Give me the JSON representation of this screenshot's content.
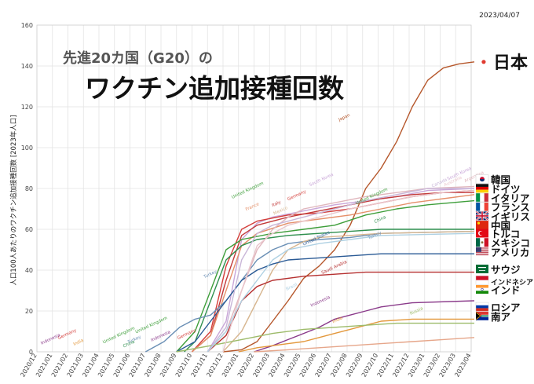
{
  "date_stamp": "2023/04/07",
  "subtitle": "先進20カ国（G20）の",
  "title": "ワクチン追加接種回数",
  "chart_data": {
    "type": "line",
    "ylabel": "人口100人あたりのワクチン追加接種回数 [2023年人口]",
    "ylim": [
      0,
      160
    ],
    "yticks": [
      0,
      20,
      40,
      60,
      80,
      100,
      120,
      140,
      160
    ],
    "x_start": "2020-12",
    "x_end": "2023-04",
    "xticks": [
      "2020/12",
      "2021/01",
      "2021/02",
      "2021/03",
      "2021/04",
      "2021/05",
      "2021/06",
      "2021/07",
      "2021/08",
      "2021/09",
      "2021/10",
      "2021/11",
      "2021/12",
      "2022/01",
      "2022/02",
      "2022/03",
      "2022/04",
      "2022/05",
      "2022/06",
      "2022/07",
      "2022/08",
      "2022/09",
      "2022/10",
      "2022/11",
      "2022/12",
      "2023/01",
      "2023/02",
      "2023/03",
      "2023/04"
    ],
    "grid": true,
    "series": [
      {
        "name": "Japan",
        "color": "#b5562a",
        "points": [
          [
            12,
            0
          ],
          [
            13.2,
            1
          ],
          [
            14.2,
            5
          ],
          [
            15.2,
            15
          ],
          [
            16.2,
            25
          ],
          [
            17.2,
            36
          ],
          [
            18.2,
            42
          ],
          [
            19.2,
            50
          ],
          [
            20.2,
            62
          ],
          [
            21.2,
            80
          ],
          [
            22.2,
            90
          ],
          [
            23.2,
            103
          ],
          [
            24.2,
            120
          ],
          [
            25.2,
            133
          ],
          [
            26.2,
            139
          ],
          [
            27.2,
            141
          ],
          [
            28.2,
            142
          ]
        ]
      },
      {
        "name": "South Korea",
        "color": "#c9a6d8",
        "points": [
          [
            11,
            0
          ],
          [
            12.2,
            15
          ],
          [
            13.2,
            55
          ],
          [
            14.2,
            63
          ],
          [
            15.2,
            66
          ],
          [
            17.2,
            69
          ],
          [
            19.2,
            72
          ],
          [
            21.2,
            74
          ],
          [
            23.2,
            76
          ],
          [
            25.2,
            79
          ],
          [
            28.2,
            80
          ]
        ]
      },
      {
        "name": "Germany",
        "color": "#d43e3a",
        "points": [
          [
            10,
            0
          ],
          [
            11.2,
            10
          ],
          [
            12.2,
            42
          ],
          [
            13.2,
            60
          ],
          [
            14.2,
            64
          ],
          [
            16.2,
            67
          ],
          [
            18.2,
            68
          ],
          [
            20.2,
            70
          ],
          [
            22.2,
            73
          ],
          [
            24.2,
            76
          ],
          [
            26.2,
            78
          ],
          [
            28.2,
            79
          ]
        ]
      },
      {
        "name": "Italy",
        "color": "#c23a3a",
        "points": [
          [
            10,
            0
          ],
          [
            11.2,
            8
          ],
          [
            12.2,
            35
          ],
          [
            13.2,
            57
          ],
          [
            14.2,
            62
          ],
          [
            16.2,
            66
          ],
          [
            18.2,
            69
          ],
          [
            20.2,
            72
          ],
          [
            22.2,
            75
          ],
          [
            24.2,
            77
          ],
          [
            26.2,
            78
          ],
          [
            28.2,
            78
          ]
        ]
      },
      {
        "name": "France",
        "color": "#e5906a",
        "points": [
          [
            10,
            0
          ],
          [
            11.2,
            8
          ],
          [
            12.2,
            30
          ],
          [
            13.2,
            52
          ],
          [
            14.2,
            58
          ],
          [
            16.2,
            63
          ],
          [
            18.2,
            65
          ],
          [
            20.2,
            67
          ],
          [
            22.2,
            70
          ],
          [
            24.2,
            73
          ],
          [
            26.2,
            75
          ],
          [
            28.2,
            77
          ]
        ]
      },
      {
        "name": "United Kingdom",
        "color": "#3e9e3a",
        "points": [
          [
            9,
            0
          ],
          [
            10.2,
            10
          ],
          [
            11.2,
            30
          ],
          [
            12.2,
            50
          ],
          [
            13.2,
            55
          ],
          [
            15.2,
            58
          ],
          [
            17.2,
            60
          ],
          [
            19.2,
            62
          ],
          [
            21.2,
            67
          ],
          [
            23.2,
            70
          ],
          [
            25.2,
            72
          ],
          [
            28.2,
            74
          ]
        ]
      },
      {
        "name": "China",
        "color": "#2f8f4e",
        "points": [
          [
            9.5,
            0
          ],
          [
            10.2,
            5
          ],
          [
            11.2,
            25
          ],
          [
            12.2,
            45
          ],
          [
            13.2,
            52
          ],
          [
            14.2,
            55
          ],
          [
            16.2,
            57
          ],
          [
            18.2,
            58
          ],
          [
            20.2,
            59
          ],
          [
            22.2,
            60
          ],
          [
            28.2,
            60
          ]
        ]
      },
      {
        "name": "Turkey",
        "color": "#6a8fb5",
        "points": [
          [
            7,
            0
          ],
          [
            8.2,
            5
          ],
          [
            9.2,
            12
          ],
          [
            10.2,
            16
          ],
          [
            11.2,
            18
          ],
          [
            12.2,
            25
          ],
          [
            13.2,
            35
          ],
          [
            14.2,
            45
          ],
          [
            15.2,
            50
          ],
          [
            16.2,
            53
          ],
          [
            18.2,
            55
          ],
          [
            20.2,
            56
          ],
          [
            22.2,
            58
          ],
          [
            28.2,
            59
          ]
        ]
      },
      {
        "name": "Mexico",
        "color": "#d7b68f",
        "points": [
          [
            12,
            0
          ],
          [
            13.2,
            10
          ],
          [
            14.2,
            25
          ],
          [
            15.2,
            40
          ],
          [
            16.2,
            50
          ],
          [
            17.2,
            54
          ],
          [
            18.2,
            56
          ],
          [
            20.2,
            57
          ],
          [
            22.2,
            58
          ],
          [
            28.2,
            59
          ]
        ]
      },
      {
        "name": "United States",
        "color": "#2a5a95",
        "points": [
          [
            9,
            0
          ],
          [
            10.2,
            5
          ],
          [
            11.2,
            15
          ],
          [
            12.2,
            25
          ],
          [
            13.2,
            35
          ],
          [
            14.2,
            40
          ],
          [
            15.2,
            43
          ],
          [
            16.2,
            45
          ],
          [
            18.2,
            46
          ],
          [
            20.2,
            47
          ],
          [
            22.2,
            48
          ],
          [
            28.2,
            48
          ]
        ]
      },
      {
        "name": "Saudi Arabia",
        "color": "#b52f2f",
        "points": [
          [
            11,
            0
          ],
          [
            12.2,
            8
          ],
          [
            13.2,
            25
          ],
          [
            14.2,
            32
          ],
          [
            15.2,
            35
          ],
          [
            17.2,
            37
          ],
          [
            19.2,
            38
          ],
          [
            21.2,
            39
          ],
          [
            28.2,
            39
          ]
        ]
      },
      {
        "name": "Indonesia",
        "color": "#8a3a8a",
        "points": [
          [
            14,
            0
          ],
          [
            15.2,
            3
          ],
          [
            16.2,
            6
          ],
          [
            17.2,
            9
          ],
          [
            18.2,
            12
          ],
          [
            19.2,
            16
          ],
          [
            20.2,
            18
          ],
          [
            21.2,
            20
          ],
          [
            22.2,
            22
          ],
          [
            24.2,
            24
          ],
          [
            28.2,
            25
          ]
        ]
      },
      {
        "name": "India",
        "color": "#e3983c",
        "points": [
          [
            13,
            0
          ],
          [
            14.2,
            2
          ],
          [
            15.2,
            3
          ],
          [
            16.2,
            4
          ],
          [
            17.2,
            5
          ],
          [
            18.2,
            7
          ],
          [
            19.2,
            9
          ],
          [
            20.2,
            11
          ],
          [
            21.2,
            13
          ],
          [
            22.2,
            15
          ],
          [
            24.2,
            16
          ],
          [
            28.2,
            16
          ]
        ]
      },
      {
        "name": "Russia",
        "color": "#9dbb6a",
        "points": [
          [
            9,
            0
          ],
          [
            11.2,
            3
          ],
          [
            13.2,
            6
          ],
          [
            15.2,
            9
          ],
          [
            17.2,
            11
          ],
          [
            19.2,
            12
          ],
          [
            21.2,
            13
          ],
          [
            23.2,
            14
          ],
          [
            28.2,
            14
          ]
        ]
      },
      {
        "name": "South Africa",
        "color": "#e6a68a",
        "points": [
          [
            14,
            0
          ],
          [
            16.2,
            1
          ],
          [
            18.2,
            2
          ],
          [
            20.2,
            3
          ],
          [
            22.2,
            4
          ],
          [
            24.2,
            5
          ],
          [
            26.2,
            6
          ],
          [
            28.2,
            7
          ]
        ]
      },
      {
        "name": "Argentina",
        "color": "#e0b6bd",
        "points": [
          [
            11,
            0
          ],
          [
            12.2,
            10
          ],
          [
            13.2,
            30
          ],
          [
            14.2,
            50
          ],
          [
            15.2,
            60
          ],
          [
            16.2,
            66
          ],
          [
            17.2,
            70
          ],
          [
            19.2,
            73
          ],
          [
            21.2,
            76
          ],
          [
            23.2,
            78
          ],
          [
            25.2,
            80
          ],
          [
            28.2,
            81
          ]
        ]
      },
      {
        "name": "Canada",
        "color": "#c9b6d8",
        "points": [
          [
            11,
            0
          ],
          [
            12.2,
            12
          ],
          [
            13.2,
            45
          ],
          [
            14.2,
            58
          ],
          [
            15.2,
            62
          ],
          [
            17.2,
            66
          ],
          [
            19.2,
            70
          ],
          [
            21.2,
            74
          ],
          [
            23.2,
            77
          ],
          [
            25.2,
            80
          ],
          [
            28.2,
            80
          ]
        ]
      },
      {
        "name": "Australia",
        "color": "#e9c6cc",
        "points": [
          [
            12,
            0
          ],
          [
            13.2,
            30
          ],
          [
            14.2,
            52
          ],
          [
            15.2,
            58
          ],
          [
            16.2,
            62
          ],
          [
            18.2,
            66
          ],
          [
            20.2,
            70
          ],
          [
            22.2,
            73
          ],
          [
            24.2,
            76
          ],
          [
            26.2,
            78
          ],
          [
            28.2,
            79
          ]
        ]
      },
      {
        "name": "Brazil",
        "color": "#afd1e3",
        "points": [
          [
            11,
            0
          ],
          [
            12.2,
            10
          ],
          [
            13.2,
            25
          ],
          [
            14.2,
            35
          ],
          [
            15.2,
            45
          ],
          [
            16.2,
            50
          ],
          [
            18.2,
            53
          ],
          [
            20.2,
            55
          ],
          [
            22.2,
            57
          ],
          [
            28.2,
            58
          ]
        ]
      }
    ],
    "inline_labels": [
      {
        "text": "Japan",
        "x": 19.5,
        "y": 113,
        "color": "#b5562a"
      },
      {
        "text": "South Korea",
        "x": 17.6,
        "y": 81,
        "color": "#c9a6d8"
      },
      {
        "text": "South Korea",
        "x": 26.5,
        "y": 84,
        "color": "#c9a6d8"
      },
      {
        "text": "Argentina",
        "x": 27.6,
        "y": 83,
        "color": "#e0b6bd"
      },
      {
        "text": "Canada",
        "x": 25.5,
        "y": 80.5,
        "color": "#c9b6d8"
      },
      {
        "text": "Australia",
        "x": 26.3,
        "y": 81,
        "color": "#e9c6cc"
      },
      {
        "text": "Germany",
        "x": 16.2,
        "y": 74,
        "color": "#d43e3a"
      },
      {
        "text": "Italy",
        "x": 15.2,
        "y": 71,
        "color": "#c23a3a"
      },
      {
        "text": "France",
        "x": 13.5,
        "y": 69,
        "color": "#e5906a"
      },
      {
        "text": "United Kingdom",
        "x": 12.6,
        "y": 75,
        "color": "#3e9e3a"
      },
      {
        "text": "United Kingdom",
        "x": 20.6,
        "y": 72,
        "color": "#3e9e3a"
      },
      {
        "text": "China",
        "x": 21.8,
        "y": 63,
        "color": "#2f8f4e"
      },
      {
        "text": "Turkey",
        "x": 10.8,
        "y": 36,
        "color": "#6a8fb5"
      },
      {
        "text": "Turkey",
        "x": 21.4,
        "y": 55,
        "color": "#6a8fb5"
      },
      {
        "text": "Mexico",
        "x": 15.3,
        "y": 67,
        "color": "#d7b68f"
      },
      {
        "text": "United States",
        "x": 17.2,
        "y": 52,
        "color": "#2a5a95"
      },
      {
        "text": "Saudi Arabia",
        "x": 18.4,
        "y": 38,
        "color": "#b52f2f"
      },
      {
        "text": "Indonesia",
        "x": 17.7,
        "y": 22,
        "color": "#8a3a8a"
      },
      {
        "text": "India",
        "x": 19.1,
        "y": 14,
        "color": "#e3983c"
      },
      {
        "text": "Russia",
        "x": 24.1,
        "y": 18,
        "color": "#9dbb6a"
      },
      {
        "text": "Brazil",
        "x": 16.1,
        "y": 30,
        "color": "#afd1e3"
      },
      {
        "text": "Germany",
        "x": 1.4,
        "y": 6,
        "color": "#d43e3a"
      },
      {
        "text": "Indonesia",
        "x": 0.3,
        "y": 3.5,
        "color": "#8a3a8a"
      },
      {
        "text": "India",
        "x": 2.4,
        "y": 3,
        "color": "#e3983c"
      },
      {
        "text": "United Kingdom",
        "x": 4.3,
        "y": 4,
        "color": "#3e9e3a"
      },
      {
        "text": "Turkey",
        "x": 5.9,
        "y": 4,
        "color": "#6a8fb5"
      },
      {
        "text": "China",
        "x": 5.6,
        "y": 2,
        "color": "#2f8f4e"
      },
      {
        "text": "United Kingdom",
        "x": 6.4,
        "y": 9,
        "color": "#3e9e3a"
      },
      {
        "text": "Indonesia",
        "x": 7.4,
        "y": 5,
        "color": "#8a3a8a"
      },
      {
        "text": "Germany",
        "x": 9.1,
        "y": 6,
        "color": "#d43e3a"
      }
    ],
    "legend": [
      {
        "label": "日本",
        "flag": "jp",
        "y": 142,
        "big": true
      },
      {
        "label": "韓国",
        "flag": "kr",
        "y": 84
      },
      {
        "label": "ドイツ",
        "flag": "de",
        "y": 79.5
      },
      {
        "label": "イタリア",
        "flag": "it",
        "y": 75
      },
      {
        "label": "フランス",
        "flag": "fr",
        "y": 70.5
      },
      {
        "label": "イギリス",
        "flag": "gb",
        "y": 66
      },
      {
        "label": "中国",
        "flag": "cn",
        "y": 61.5
      },
      {
        "label": "トルコ",
        "flag": "tr",
        "y": 57.5
      },
      {
        "label": "メキシコ",
        "flag": "mx",
        "y": 53
      },
      {
        "label": "アメリカ",
        "flag": "us",
        "y": 48.5
      },
      {
        "label": "サウジ",
        "flag": "sa",
        "y": 40
      },
      {
        "label": "インドネシア",
        "flag": "id",
        "y": 34.5,
        "small": true
      },
      {
        "label": "インド",
        "flag": "in",
        "y": 30
      },
      {
        "label": "ロシア",
        "flag": "ru",
        "y": 21.5
      },
      {
        "label": "南ア",
        "flag": "za",
        "y": 17
      }
    ]
  }
}
